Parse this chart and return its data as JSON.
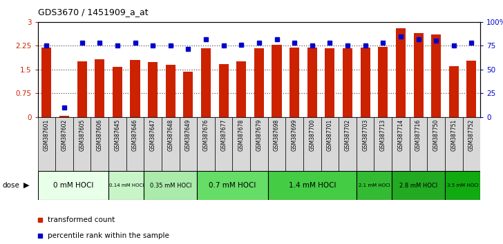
{
  "title": "GDS3670 / 1451909_a_at",
  "samples": [
    "GSM387601",
    "GSM387602",
    "GSM387605",
    "GSM387606",
    "GSM387645",
    "GSM387646",
    "GSM387647",
    "GSM387648",
    "GSM387649",
    "GSM387676",
    "GSM387677",
    "GSM387678",
    "GSM387679",
    "GSM387698",
    "GSM387699",
    "GSM387700",
    "GSM387701",
    "GSM387702",
    "GSM387703",
    "GSM387713",
    "GSM387714",
    "GSM387716",
    "GSM387750",
    "GSM387751",
    "GSM387752"
  ],
  "red_values": [
    2.2,
    0.05,
    1.75,
    1.82,
    1.58,
    1.8,
    1.73,
    1.65,
    1.43,
    2.18,
    1.68,
    1.75,
    2.18,
    2.28,
    2.2,
    2.2,
    2.18,
    2.18,
    2.2,
    2.22,
    2.8,
    2.65,
    2.6,
    1.6,
    1.78
  ],
  "blue_values": [
    75,
    10,
    78,
    78,
    75,
    78,
    75,
    75,
    72,
    82,
    75,
    76,
    78,
    82,
    78,
    75,
    78,
    75,
    75,
    78,
    85,
    82,
    80,
    75,
    78
  ],
  "dose_groups": [
    {
      "label": "0 mM HOCl",
      "count": 4,
      "color": "#e8ffe8"
    },
    {
      "label": "0.14 mM HOCl",
      "count": 2,
      "color": "#c8f5c8"
    },
    {
      "label": "0.35 mM HOCl",
      "count": 3,
      "color": "#aaeaaa"
    },
    {
      "label": "0.7 mM HOCl",
      "count": 4,
      "color": "#66dd66"
    },
    {
      "label": "1.4 mM HOCl",
      "count": 5,
      "color": "#44cc44"
    },
    {
      "label": "2.1 mM HOCl",
      "count": 2,
      "color": "#33bb33"
    },
    {
      "label": "2.8 mM HOCl",
      "count": 3,
      "color": "#22aa22"
    },
    {
      "label": "3.5 mM HOCl",
      "count": 2,
      "color": "#11aa11"
    }
  ],
  "yticks_left": [
    0,
    0.75,
    1.5,
    2.25,
    3.0
  ],
  "yticks_right": [
    0,
    25,
    50,
    75,
    100
  ],
  "ylim_left": [
    0,
    3.0
  ],
  "ylim_right": [
    0,
    100
  ],
  "bar_color": "#cc2200",
  "blue_color": "#0000cc",
  "dotted_lines": [
    0.75,
    1.5,
    2.25
  ],
  "bg_color": "#ffffff",
  "label_bg": "#d8d8d8"
}
